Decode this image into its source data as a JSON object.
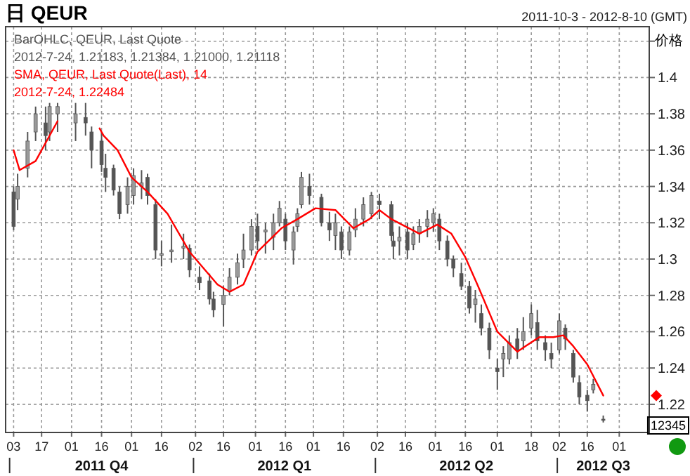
{
  "chart_data": {
    "type": "candlestick",
    "title": "日 QEUR",
    "subtitle": "2011-10-3 - 2012-8-10 (GMT)",
    "ylabel": "价格",
    "xlim": [
      "2011-09-29",
      "2012-08-16"
    ],
    "xticks": [
      {
        "value": "2011-10-03",
        "label": "03"
      },
      {
        "value": "2011-10-17",
        "label": "17"
      },
      {
        "value": "2011-11-01",
        "label": "01"
      },
      {
        "value": "2011-11-16",
        "label": "16"
      },
      {
        "value": "2011-12-01",
        "label": "01"
      },
      {
        "value": "2011-12-16",
        "label": "16"
      },
      {
        "value": "2012-01-02",
        "label": "02"
      },
      {
        "value": "2012-01-16",
        "label": "16"
      },
      {
        "value": "2012-02-01",
        "label": "01"
      },
      {
        "value": "2012-02-16",
        "label": "16"
      },
      {
        "value": "2012-03-01",
        "label": "01"
      },
      {
        "value": "2012-03-16",
        "label": "16"
      },
      {
        "value": "2012-04-02",
        "label": "02"
      },
      {
        "value": "2012-04-16",
        "label": "16"
      },
      {
        "value": "2012-05-01",
        "label": "01"
      },
      {
        "value": "2012-05-16",
        "label": "16"
      },
      {
        "value": "2012-06-01",
        "label": "01"
      },
      {
        "value": "2012-06-18",
        "label": "18"
      },
      {
        "value": "2012-07-02",
        "label": "02"
      },
      {
        "value": "2012-07-16",
        "label": "16"
      },
      {
        "value": "2012-08-01",
        "label": "01"
      }
    ],
    "ylim": [
      1.2045,
      1.428
    ],
    "yticks": [
      1.22,
      1.24,
      1.26,
      1.28,
      1.3,
      1.32,
      1.34,
      1.36,
      1.38,
      1.4,
      {
        "value": 1.42,
        "label": null
      }
    ],
    "grid": true,
    "legend": "top left",
    "series": [
      {
        "name": "BarOHLC, QEUR, Last Quote",
        "type": "candlestick",
        "color": "#555555",
        "x": [
          "2011-10-03",
          "2011-10-05",
          "2011-10-10",
          "2011-10-14",
          "2011-10-19",
          "2011-10-21",
          "2011-10-25",
          "2011-11-03",
          "2011-11-08",
          "2011-11-11",
          "2011-11-16",
          "2011-11-18",
          "2011-11-22",
          "2011-11-25",
          "2011-11-29",
          "2011-12-02",
          "2011-12-06",
          "2011-12-09",
          "2011-12-13",
          "2011-12-16",
          "2011-12-21",
          "2011-12-27",
          "2011-12-30",
          "2012-01-04",
          "2012-01-09",
          "2012-01-11",
          "2012-01-16",
          "2012-01-19",
          "2012-01-23",
          "2012-01-26",
          "2012-01-30",
          "2012-02-02",
          "2012-02-06",
          "2012-02-10",
          "2012-02-13",
          "2012-02-16",
          "2012-02-20",
          "2012-02-22",
          "2012-02-24",
          "2012-02-28",
          "2012-03-05",
          "2012-03-09",
          "2012-03-12",
          "2012-03-15",
          "2012-03-19",
          "2012-03-22",
          "2012-03-26",
          "2012-03-30",
          "2012-04-03",
          "2012-04-09",
          "2012-04-10",
          "2012-04-13",
          "2012-04-17",
          "2012-04-20",
          "2012-04-23",
          "2012-04-27",
          "2012-04-30",
          "2012-05-03",
          "2012-05-07",
          "2012-05-10",
          "2012-05-14",
          "2012-05-18",
          "2012-05-21",
          "2012-05-24",
          "2012-05-28",
          "2012-06-01",
          "2012-06-04",
          "2012-06-07",
          "2012-06-11",
          "2012-06-14",
          "2012-06-18",
          "2012-06-21",
          "2012-06-25",
          "2012-06-28",
          "2012-07-02",
          "2012-07-05",
          "2012-07-09",
          "2012-07-12",
          "2012-07-16",
          "2012-07-19",
          "2012-07-24"
        ],
        "ohlc": [
          [
            1.337,
            1.34,
            1.316,
            1.318
          ],
          [
            1.333,
            1.347,
            1.327,
            1.34
          ],
          [
            1.35,
            1.37,
            1.345,
            1.365
          ],
          [
            1.37,
            1.384,
            1.365,
            1.38
          ],
          [
            1.375,
            1.384,
            1.36,
            1.368
          ],
          [
            1.37,
            1.386,
            1.365,
            1.384
          ],
          [
            1.38,
            1.386,
            1.37,
            1.384
          ],
          [
            1.375,
            1.386,
            1.365,
            1.38
          ],
          [
            1.378,
            1.386,
            1.368,
            1.375
          ],
          [
            1.37,
            1.373,
            1.35,
            1.36
          ],
          [
            1.365,
            1.37,
            1.348,
            1.352
          ],
          [
            1.35,
            1.358,
            1.337,
            1.345
          ],
          [
            1.35,
            1.352,
            1.335,
            1.338
          ],
          [
            1.337,
            1.34,
            1.322,
            1.325
          ],
          [
            1.33,
            1.345,
            1.325,
            1.34
          ],
          [
            1.335,
            1.35,
            1.33,
            1.346
          ],
          [
            1.34,
            1.349,
            1.333,
            1.342
          ],
          [
            1.345,
            1.347,
            1.33,
            1.335
          ],
          [
            1.33,
            1.333,
            1.3,
            1.305
          ],
          [
            1.302,
            1.31,
            1.296,
            1.303
          ],
          [
            1.304,
            1.319,
            1.298,
            1.305
          ],
          [
            1.306,
            1.314,
            1.3,
            1.307
          ],
          [
            1.306,
            1.308,
            1.29,
            1.294
          ],
          [
            1.29,
            1.296,
            1.283,
            1.287
          ],
          [
            1.288,
            1.292,
            1.275,
            1.278
          ],
          [
            1.278,
            1.282,
            1.268,
            1.272
          ],
          [
            1.275,
            1.285,
            1.263,
            1.28
          ],
          [
            1.282,
            1.295,
            1.28,
            1.29
          ],
          [
            1.29,
            1.303,
            1.286,
            1.298
          ],
          [
            1.3,
            1.314,
            1.295,
            1.305
          ],
          [
            1.305,
            1.322,
            1.302,
            1.318
          ],
          [
            1.318,
            1.325,
            1.305,
            1.31
          ],
          [
            1.315,
            1.32,
            1.303,
            1.316
          ],
          [
            1.312,
            1.325,
            1.305,
            1.32
          ],
          [
            1.32,
            1.332,
            1.318,
            1.328
          ],
          [
            1.322,
            1.325,
            1.305,
            1.31
          ],
          [
            1.305,
            1.318,
            1.297,
            1.315
          ],
          [
            1.318,
            1.328,
            1.315,
            1.325
          ],
          [
            1.33,
            1.348,
            1.328,
            1.345
          ],
          [
            1.34,
            1.347,
            1.33,
            1.335
          ],
          [
            1.334,
            1.336,
            1.318,
            1.32
          ],
          [
            1.32,
            1.326,
            1.31,
            1.316
          ],
          [
            1.313,
            1.325,
            1.305,
            1.32
          ],
          [
            1.315,
            1.318,
            1.3,
            1.305
          ],
          [
            1.305,
            1.318,
            1.302,
            1.315
          ],
          [
            1.316,
            1.328,
            1.312,
            1.322
          ],
          [
            1.322,
            1.334,
            1.318,
            1.33
          ],
          [
            1.325,
            1.337,
            1.322,
            1.335
          ],
          [
            1.332,
            1.336,
            1.322,
            1.33
          ],
          [
            1.33,
            1.332,
            1.31,
            1.313
          ],
          [
            1.31,
            1.315,
            1.3,
            1.307
          ],
          [
            1.31,
            1.318,
            1.302,
            1.312
          ],
          [
            1.315,
            1.32,
            1.3,
            1.305
          ],
          [
            1.308,
            1.318,
            1.305,
            1.314
          ],
          [
            1.314,
            1.322,
            1.309,
            1.318
          ],
          [
            1.318,
            1.327,
            1.312,
            1.322
          ],
          [
            1.32,
            1.328,
            1.315,
            1.325
          ],
          [
            1.322,
            1.325,
            1.305,
            1.31
          ],
          [
            1.31,
            1.313,
            1.296,
            1.3
          ],
          [
            1.3,
            1.302,
            1.29,
            1.295
          ],
          [
            1.292,
            1.298,
            1.283,
            1.285
          ],
          [
            1.285,
            1.288,
            1.27,
            1.273
          ],
          [
            1.275,
            1.283,
            1.265,
            1.278
          ],
          [
            1.27,
            1.275,
            1.258,
            1.262
          ],
          [
            1.262,
            1.265,
            1.245,
            1.25
          ],
          [
            1.24,
            1.245,
            1.228,
            1.238
          ],
          [
            1.245,
            1.252,
            1.235,
            1.248
          ],
          [
            1.245,
            1.258,
            1.242,
            1.254
          ],
          [
            1.256,
            1.262,
            1.245,
            1.25
          ],
          [
            1.255,
            1.268,
            1.25,
            1.26
          ],
          [
            1.262,
            1.275,
            1.258,
            1.27
          ],
          [
            1.265,
            1.272,
            1.25,
            1.255
          ],
          [
            1.254,
            1.258,
            1.244,
            1.25
          ],
          [
            1.248,
            1.254,
            1.24,
            1.245
          ],
          [
            1.25,
            1.27,
            1.248,
            1.266
          ],
          [
            1.262,
            1.264,
            1.25,
            1.256
          ],
          [
            1.248,
            1.25,
            1.232,
            1.235
          ],
          [
            1.232,
            1.236,
            1.22,
            1.224
          ],
          [
            1.225,
            1.228,
            1.216,
            1.222
          ],
          [
            1.228,
            1.234,
            1.226,
            1.231
          ],
          [
            1.21183,
            1.21384,
            1.21,
            1.21118
          ]
        ]
      },
      {
        "name": "SMA, QEUR, Last Quote(Last), 14",
        "type": "line",
        "color": "#ff0000",
        "x": [
          "2011-10-03",
          "2011-10-06",
          "2011-10-14",
          "2011-10-25",
          "2011-11-01",
          "2011-11-15",
          "2011-11-17",
          "2011-11-24",
          "2011-12-01",
          "2011-12-09",
          "2011-12-19",
          "2011-12-30",
          "2012-01-13",
          "2012-01-19",
          "2012-01-26",
          "2012-02-02",
          "2012-02-14",
          "2012-02-22",
          "2012-03-02",
          "2012-03-12",
          "2012-03-21",
          "2012-03-29",
          "2012-04-03",
          "2012-04-09",
          "2012-04-23",
          "2012-05-02",
          "2012-05-09",
          "2012-05-16",
          "2012-05-22",
          "2012-06-01",
          "2012-06-11",
          "2012-06-15",
          "2012-06-22",
          "2012-06-29",
          "2012-07-04",
          "2012-07-09",
          "2012-07-16",
          "2012-07-24"
        ],
        "values": [
          1.36,
          1.349,
          1.354,
          1.376,
          null,
          1.372,
          1.368,
          1.36,
          1.345,
          1.337,
          1.325,
          1.304,
          1.286,
          1.282,
          1.286,
          1.304,
          1.317,
          1.322,
          1.328,
          1.327,
          1.317,
          1.322,
          1.327,
          1.322,
          1.314,
          1.319,
          1.314,
          1.301,
          1.286,
          1.26,
          1.249,
          1.252,
          1.257,
          1.257,
          1.258,
          1.252,
          1.242,
          1.22484
        ]
      }
    ],
    "annotations": [
      "2012-7-24, 1.21183, 1.21384, 1.21000, 1.21118",
      "2012-7-24, 1.22484",
      "12345",
      "2011 Q4",
      "2012 Q1",
      "2012 Q2",
      "2012 Q3"
    ]
  }
}
